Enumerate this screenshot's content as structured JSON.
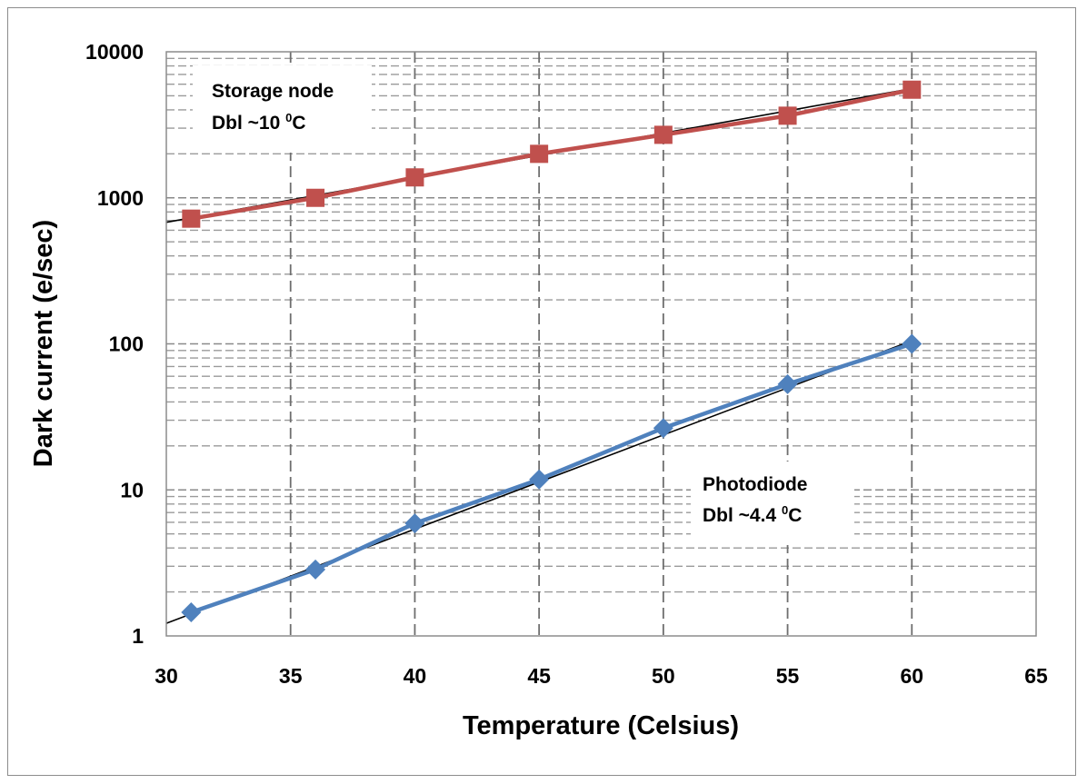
{
  "chart_data": {
    "type": "scatter",
    "title": "",
    "xlabel": "Temperature (Celsius)",
    "ylabel": "Dark current (e/sec)",
    "xlim": [
      30,
      65
    ],
    "ylim": [
      1,
      10000
    ],
    "yscale": "log",
    "grid": true,
    "x_ticks": [
      "30",
      "35",
      "40",
      "45",
      "50",
      "55",
      "60",
      "65"
    ],
    "y_ticks": [
      "1",
      "10",
      "100",
      "1000",
      "10000"
    ],
    "series": [
      {
        "marker": "square",
        "color": "#c0504d",
        "trend_color": "#000000",
        "x": [
          31,
          36,
          40,
          45,
          50,
          55,
          60
        ],
        "y": [
          720,
          1000,
          1380,
          2000,
          2700,
          3650,
          5500
        ],
        "trend": {
          "x": [
            30,
            60
          ],
          "y": [
            680,
            5600
          ]
        }
      },
      {
        "marker": "diamond",
        "color": "#4f81bd",
        "trend_color": "#000000",
        "x": [
          31,
          36,
          40,
          45,
          50,
          55,
          60
        ],
        "y": [
          1.45,
          2.85,
          5.9,
          11.8,
          26.5,
          53,
          100
        ],
        "trend": {
          "x": [
            30,
            60
          ],
          "y": [
            1.22,
            105
          ]
        }
      }
    ],
    "annotations": [
      {
        "line1": "Storage node",
        "line2_prefix": "Dbl ~10 ",
        "sup": "0",
        "line2_suffix": "C"
      },
      {
        "line1": "Photodiode",
        "line2_prefix": "Dbl ~4.4 ",
        "sup": "0",
        "line2_suffix": "C"
      }
    ]
  }
}
